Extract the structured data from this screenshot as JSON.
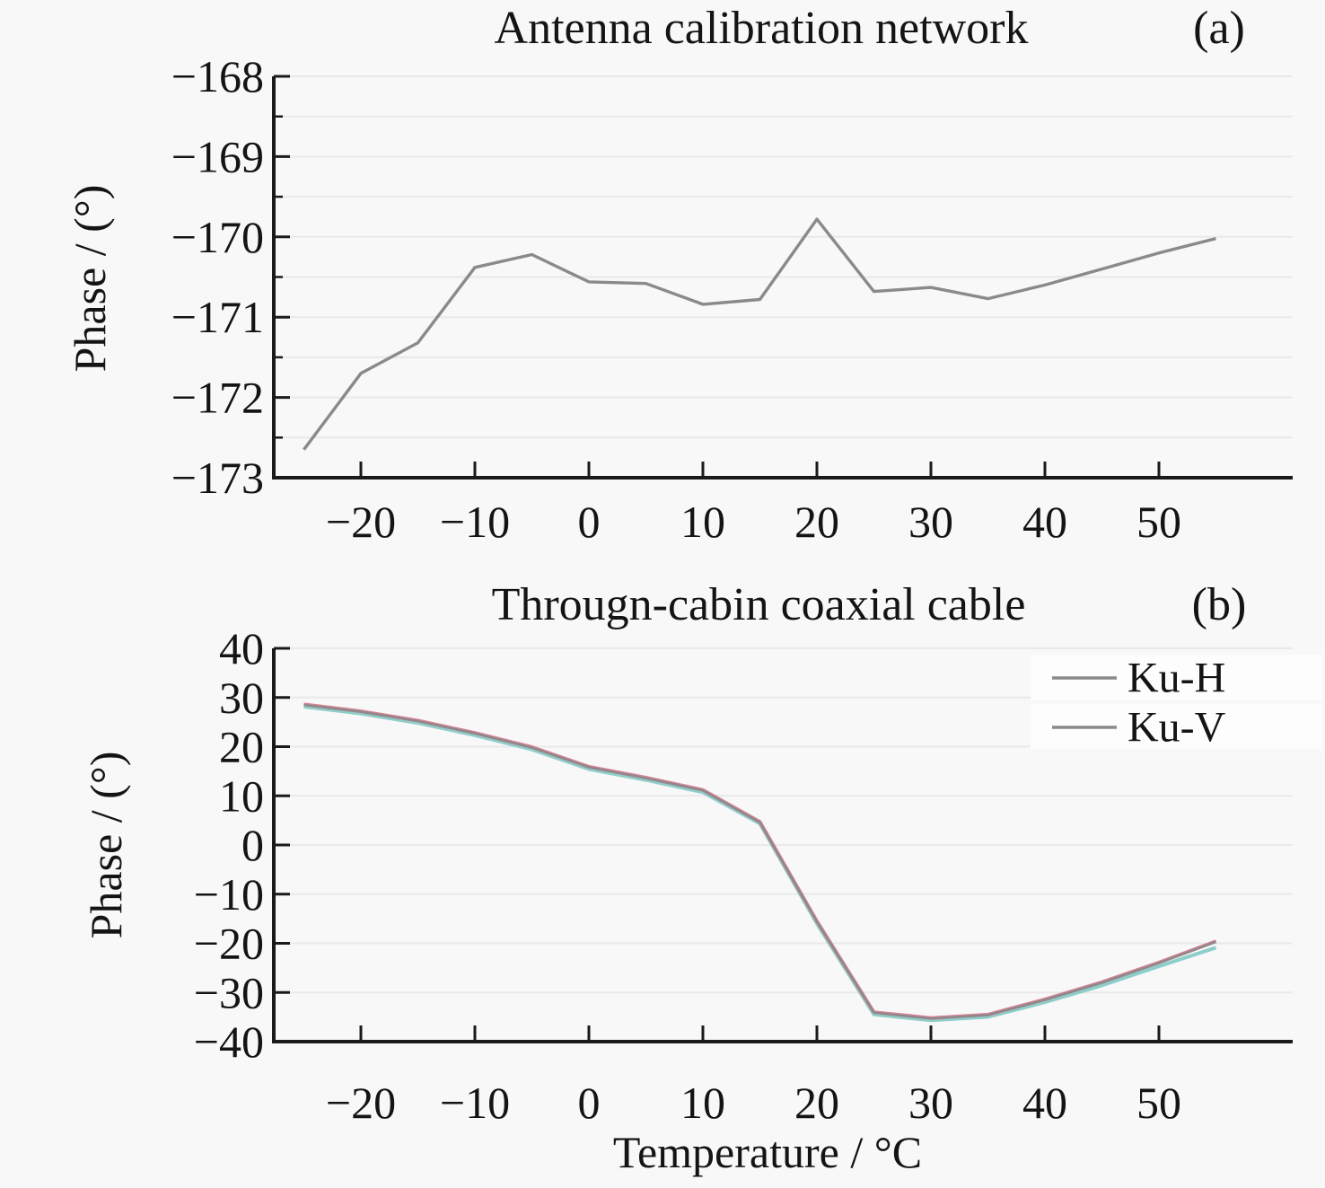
{
  "figure": {
    "background": "#f8f8f8",
    "axis_color": "#1a1a1a",
    "grid_color": "#e9e9e9",
    "line_gray": "#8a8a8a",
    "ku_h_fringe_color": "#d98296",
    "ku_v_fringe_color": "#8ccfca"
  },
  "chart_data": [
    {
      "type": "line",
      "title": "Antenna calibration network",
      "panel_label": "(a)",
      "xlabel": "",
      "ylabel": "Phase / (°)",
      "x": [
        -25,
        -20,
        -15,
        -10,
        -5,
        0,
        5,
        10,
        15,
        20,
        25,
        30,
        35,
        40,
        45,
        50,
        55
      ],
      "series": [
        {
          "name": "Antenna calibration network phase",
          "color": "#8a8a8a",
          "values": [
            -172.65,
            -171.7,
            -171.32,
            -170.38,
            -170.22,
            -170.56,
            -170.58,
            -170.84,
            -170.78,
            -169.78,
            -170.68,
            -170.63,
            -170.77,
            -170.6,
            -170.4,
            -170.2,
            -170.02
          ]
        }
      ],
      "xlim": [
        -27.6,
        61.7
      ],
      "ylim": [
        -173,
        -168
      ],
      "xticks": [
        -20,
        -10,
        0,
        10,
        20,
        30,
        40,
        50
      ],
      "yticks": [
        -173,
        -172,
        -171,
        -170,
        -169,
        -168
      ],
      "yticks_minor": [
        -172.5,
        -171.5,
        -170.5,
        -169.5,
        -168.5
      ],
      "grid_y_values": [
        -172.5,
        -172,
        -171.5,
        -171,
        -170.5,
        -170,
        -169.5,
        -169,
        -168.5,
        -168
      ],
      "grid": "horizontal only",
      "legend": []
    },
    {
      "type": "line",
      "title": "Througn-cabin coaxial cable",
      "panel_label": "(b)",
      "xlabel": "Temperature / °C",
      "ylabel": "Phase / (°)",
      "x": [
        -25,
        -20,
        -15,
        -10,
        -5,
        0,
        5,
        10,
        15,
        20,
        25,
        30,
        35,
        40,
        45,
        50,
        55
      ],
      "series": [
        {
          "name": "Ku-H",
          "color": "#d98296",
          "values": [
            28.6,
            27.2,
            25.3,
            22.8,
            19.9,
            15.9,
            13.7,
            11.2,
            4.7,
            -15.5,
            -34.0,
            -35.2,
            -34.5,
            -31.4,
            -27.9,
            -23.9,
            -19.6
          ]
        },
        {
          "name": "Ku-V",
          "color": "#8ccfca",
          "values": [
            28.4,
            27.0,
            25.1,
            22.6,
            19.7,
            15.7,
            13.5,
            11.0,
            4.6,
            -15.7,
            -34.2,
            -35.4,
            -34.7,
            -31.7,
            -28.3,
            -24.4,
            -20.6
          ]
        }
      ],
      "xlim": [
        -27.6,
        61.7
      ],
      "ylim": [
        -40,
        40
      ],
      "xticks": [
        -20,
        -10,
        0,
        10,
        20,
        30,
        40,
        50
      ],
      "yticks": [
        -40,
        -30,
        -20,
        -10,
        0,
        10,
        20,
        30,
        40
      ],
      "yticks_minor": [],
      "grid_y_values": [
        -30,
        -20,
        -10,
        0,
        10,
        20,
        30,
        40
      ],
      "grid": "horizontal only",
      "legend": [
        "Ku-H",
        "Ku-V"
      ],
      "legend_position": "upper right"
    }
  ]
}
